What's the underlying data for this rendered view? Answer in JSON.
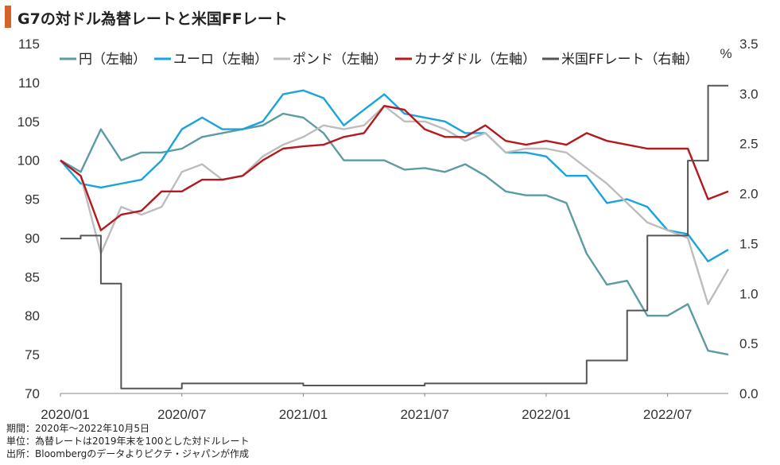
{
  "title": "G7の対ドル為替レートと米国FFレート",
  "colors": {
    "accent": "#d4622a"
  },
  "notes": [
    "期間：2020年～2022年10月5日",
    "単位：為替レートは2019年末を100とした対ドルレート",
    "出所：Bloombergのデータよりピクテ・ジャパンが作成"
  ],
  "chart_data": {
    "type": "line",
    "x_ticks": [
      "2020/01",
      "2020/07",
      "2021/01",
      "2021/07",
      "2022/01",
      "2022/07"
    ],
    "y_left": {
      "ticks": [
        70,
        75,
        80,
        85,
        90,
        95,
        100,
        105,
        110,
        115
      ],
      "range": [
        70,
        115
      ]
    },
    "y_right": {
      "ticks": [
        "0.0",
        "0.5",
        "1.0",
        "1.5",
        "2.0",
        "2.5",
        "3.0",
        "3.5"
      ],
      "range": [
        0,
        3.5
      ],
      "unit": "%"
    },
    "grid": false,
    "legend_position": "top",
    "series": [
      {
        "name": "円（左軸）",
        "color": "#5d9ba2",
        "axis": "left",
        "points": [
          [
            "2020/01",
            100
          ],
          [
            "2020/02",
            98.5
          ],
          [
            "2020/03",
            104
          ],
          [
            "2020/04",
            100
          ],
          [
            "2020/05",
            101
          ],
          [
            "2020/06",
            101
          ],
          [
            "2020/07",
            101.5
          ],
          [
            "2020/08",
            103
          ],
          [
            "2020/09",
            103.5
          ],
          [
            "2020/10",
            104
          ],
          [
            "2020/11",
            104.5
          ],
          [
            "2020/12",
            106
          ],
          [
            "2021/01",
            105.5
          ],
          [
            "2021/02",
            103.5
          ],
          [
            "2021/03",
            100
          ],
          [
            "2021/04",
            100
          ],
          [
            "2021/05",
            100
          ],
          [
            "2021/06",
            98.8
          ],
          [
            "2021/07",
            99
          ],
          [
            "2021/08",
            98.5
          ],
          [
            "2021/09",
            99.5
          ],
          [
            "2021/10",
            98
          ],
          [
            "2021/11",
            96
          ],
          [
            "2021/12",
            95.5
          ],
          [
            "2022/01",
            95.5
          ],
          [
            "2022/02",
            94.5
          ],
          [
            "2022/03",
            88
          ],
          [
            "2022/04",
            84
          ],
          [
            "2022/05",
            84.5
          ],
          [
            "2022/06",
            80
          ],
          [
            "2022/07",
            80
          ],
          [
            "2022/08",
            81.5
          ],
          [
            "2022/09",
            75.5
          ],
          [
            "2022/10",
            75
          ]
        ]
      },
      {
        "name": "ユーロ（左軸）",
        "color": "#1aa3dc",
        "axis": "left",
        "points": [
          [
            "2020/01",
            100
          ],
          [
            "2020/02",
            97
          ],
          [
            "2020/03",
            96.5
          ],
          [
            "2020/04",
            97
          ],
          [
            "2020/05",
            97.5
          ],
          [
            "2020/06",
            100
          ],
          [
            "2020/07",
            104
          ],
          [
            "2020/08",
            105.5
          ],
          [
            "2020/09",
            104
          ],
          [
            "2020/10",
            104
          ],
          [
            "2020/11",
            105
          ],
          [
            "2020/12",
            108.5
          ],
          [
            "2021/01",
            109
          ],
          [
            "2021/02",
            108
          ],
          [
            "2021/03",
            104.5
          ],
          [
            "2021/04",
            106.5
          ],
          [
            "2021/05",
            108.5
          ],
          [
            "2021/06",
            106
          ],
          [
            "2021/07",
            105.5
          ],
          [
            "2021/08",
            105
          ],
          [
            "2021/09",
            103.5
          ],
          [
            "2021/10",
            103.5
          ],
          [
            "2021/11",
            101
          ],
          [
            "2021/12",
            101
          ],
          [
            "2022/01",
            100.5
          ],
          [
            "2022/02",
            98
          ],
          [
            "2022/03",
            98
          ],
          [
            "2022/04",
            94.5
          ],
          [
            "2022/05",
            95
          ],
          [
            "2022/06",
            94
          ],
          [
            "2022/07",
            91
          ],
          [
            "2022/08",
            90.5
          ],
          [
            "2022/09",
            87
          ],
          [
            "2022/10",
            88.5
          ]
        ]
      },
      {
        "name": "ポンド（左軸）",
        "color": "#bdbdbd",
        "axis": "left",
        "points": [
          [
            "2020/01",
            100
          ],
          [
            "2020/02",
            98
          ],
          [
            "2020/03",
            88
          ],
          [
            "2020/04",
            94
          ],
          [
            "2020/05",
            93
          ],
          [
            "2020/06",
            94
          ],
          [
            "2020/07",
            98.5
          ],
          [
            "2020/08",
            99.5
          ],
          [
            "2020/09",
            97.5
          ],
          [
            "2020/10",
            98
          ],
          [
            "2020/11",
            100.5
          ],
          [
            "2020/12",
            102
          ],
          [
            "2021/01",
            103
          ],
          [
            "2021/02",
            104.5
          ],
          [
            "2021/03",
            104
          ],
          [
            "2021/04",
            104.5
          ],
          [
            "2021/05",
            107
          ],
          [
            "2021/06",
            105
          ],
          [
            "2021/07",
            105
          ],
          [
            "2021/08",
            104
          ],
          [
            "2021/09",
            102.5
          ],
          [
            "2021/10",
            103.5
          ],
          [
            "2021/11",
            101
          ],
          [
            "2021/12",
            101.5
          ],
          [
            "2022/01",
            101.5
          ],
          [
            "2022/02",
            101
          ],
          [
            "2022/03",
            99
          ],
          [
            "2022/04",
            97
          ],
          [
            "2022/05",
            94.5
          ],
          [
            "2022/06",
            92
          ],
          [
            "2022/07",
            91
          ],
          [
            "2022/08",
            90
          ],
          [
            "2022/09",
            81.5
          ],
          [
            "2022/10",
            86
          ]
        ]
      },
      {
        "name": "カナダドル（左軸）",
        "color": "#b4191f",
        "axis": "left",
        "points": [
          [
            "2020/01",
            100
          ],
          [
            "2020/02",
            98
          ],
          [
            "2020/03",
            91
          ],
          [
            "2020/04",
            93
          ],
          [
            "2020/05",
            93.5
          ],
          [
            "2020/06",
            96
          ],
          [
            "2020/07",
            96
          ],
          [
            "2020/08",
            97.5
          ],
          [
            "2020/09",
            97.5
          ],
          [
            "2020/10",
            98
          ],
          [
            "2020/11",
            100
          ],
          [
            "2020/12",
            101.5
          ],
          [
            "2021/01",
            101.8
          ],
          [
            "2021/02",
            102
          ],
          [
            "2021/03",
            103
          ],
          [
            "2021/04",
            103.5
          ],
          [
            "2021/05",
            107
          ],
          [
            "2021/06",
            106.5
          ],
          [
            "2021/07",
            104
          ],
          [
            "2021/08",
            103
          ],
          [
            "2021/09",
            103
          ],
          [
            "2021/10",
            104.5
          ],
          [
            "2021/11",
            102.5
          ],
          [
            "2021/12",
            102
          ],
          [
            "2022/01",
            102.5
          ],
          [
            "2022/02",
            102
          ],
          [
            "2022/03",
            103.5
          ],
          [
            "2022/04",
            102.5
          ],
          [
            "2022/05",
            102
          ],
          [
            "2022/06",
            101.5
          ],
          [
            "2022/07",
            101.5
          ],
          [
            "2022/08",
            101.5
          ],
          [
            "2022/09",
            95
          ],
          [
            "2022/10",
            96
          ]
        ]
      },
      {
        "name": "米国FFレート（右軸）",
        "color": "#555555",
        "axis": "right",
        "points": [
          [
            "2020/01",
            1.55
          ],
          [
            "2020/02",
            1.58
          ],
          [
            "2020/03",
            1.1
          ],
          [
            "2020/04",
            0.05
          ],
          [
            "2020/07",
            0.1
          ],
          [
            "2021/01",
            0.08
          ],
          [
            "2021/07",
            0.1
          ],
          [
            "2022/03",
            0.33
          ],
          [
            "2022/05",
            0.83
          ],
          [
            "2022/06",
            1.58
          ],
          [
            "2022/07",
            1.58
          ],
          [
            "2022/08",
            2.33
          ],
          [
            "2022/09",
            3.08
          ],
          [
            "2022/10",
            3.08
          ]
        ]
      }
    ]
  }
}
